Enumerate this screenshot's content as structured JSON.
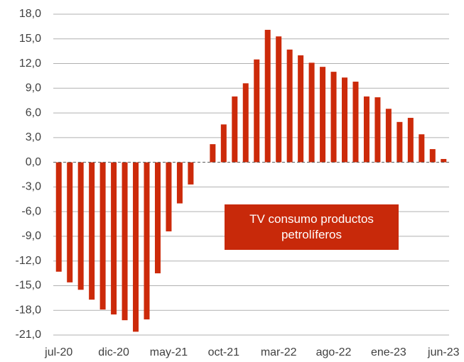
{
  "chart_data": {
    "type": "bar",
    "categories": [
      "jul-20",
      null,
      null,
      null,
      null,
      "dic-20",
      null,
      null,
      null,
      null,
      "may-21",
      null,
      null,
      null,
      null,
      "oct-21",
      null,
      null,
      null,
      null,
      "mar-22",
      null,
      null,
      null,
      null,
      "ago-22",
      null,
      null,
      null,
      null,
      "ene-23",
      null,
      null,
      null,
      null,
      "jun-23"
    ],
    "values": [
      -13.3,
      -14.6,
      -15.5,
      -16.7,
      -17.9,
      -18.5,
      -19.2,
      -20.6,
      -19.1,
      -13.5,
      -8.4,
      -5.0,
      -2.7,
      0,
      2.2,
      4.6,
      8.0,
      9.6,
      12.5,
      16.1,
      15.3,
      13.7,
      13.0,
      12.1,
      11.6,
      11.0,
      10.3,
      9.8,
      8.0,
      7.9,
      6.5,
      4.9,
      5.4,
      3.4,
      1.6,
      0.4
    ],
    "color": "#cc2a0a",
    "ylim": [
      -21,
      18
    ],
    "yticks": [
      {
        "value": -21,
        "label": "-21,0"
      },
      {
        "value": -18,
        "label": "-18,0"
      },
      {
        "value": -15,
        "label": "-15,0"
      },
      {
        "value": -12,
        "label": "-12,0"
      },
      {
        "value": -9,
        "label": "-9,0"
      },
      {
        "value": -6,
        "label": "-6,0"
      },
      {
        "value": -3,
        "label": "-3,0"
      },
      {
        "value": 0,
        "label": "0,0"
      },
      {
        "value": 3,
        "label": "3,0"
      },
      {
        "value": 6,
        "label": "6,0"
      },
      {
        "value": 9,
        "label": "9,0"
      },
      {
        "value": 12,
        "label": "12,0"
      },
      {
        "value": 15,
        "label": "15,0"
      },
      {
        "value": 18,
        "label": "18,0"
      }
    ],
    "grid": true,
    "annotation": "TV consumo productos petrolíferos"
  }
}
